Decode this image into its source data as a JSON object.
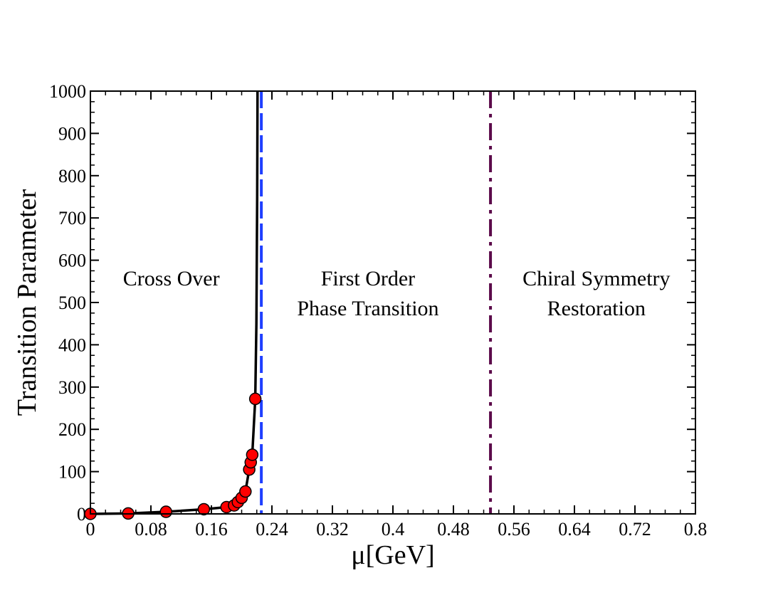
{
  "chart_data": {
    "type": "line",
    "xlabel": "μ[GeV]",
    "ylabel": "Transition Parameter",
    "xlim": [
      0,
      0.8
    ],
    "ylim": [
      0,
      1000
    ],
    "xticks": [
      "0",
      "0.08",
      "0.16",
      "0.24",
      "0.32",
      "0.4",
      "0.48",
      "0.56",
      "0.64",
      "0.72",
      "0.8"
    ],
    "yticks": [
      "0",
      "100",
      "200",
      "300",
      "400",
      "500",
      "600",
      "700",
      "800",
      "900",
      "1000"
    ],
    "series": [
      {
        "name": "Transition Parameter",
        "color": "#000000",
        "marker_color": "#ff0000",
        "x": [
          0,
          0.05,
          0.1,
          0.15,
          0.18,
          0.19,
          0.195,
          0.2,
          0.205,
          0.21,
          0.212,
          0.214,
          0.218
        ],
        "y": [
          0,
          1,
          5,
          11,
          16,
          20,
          28,
          38,
          53,
          105,
          122,
          140,
          272
        ],
        "curve_x": [
          0,
          0.05,
          0.1,
          0.15,
          0.18,
          0.19,
          0.195,
          0.2,
          0.205,
          0.21,
          0.212,
          0.214,
          0.218,
          0.2195,
          0.2205,
          0.221
        ],
        "curve_y": [
          0,
          1,
          5,
          11,
          16,
          20,
          28,
          38,
          53,
          105,
          122,
          140,
          272,
          450,
          750,
          1000
        ]
      }
    ],
    "vlines": [
      {
        "name": "first-order-boundary",
        "x": 0.226,
        "style": "dashed",
        "color": "#1f3fff"
      },
      {
        "name": "chiral-restoration-boundary",
        "x": 0.529,
        "style": "dashdot",
        "color": "#5c0a4a"
      }
    ],
    "annotations": [
      {
        "lines": [
          "Cross Over"
        ],
        "x": 0.107,
        "y": 540
      },
      {
        "lines": [
          "First Order",
          "Phase Transition"
        ],
        "x": 0.367,
        "y": 540
      },
      {
        "lines": [
          "Chiral Symmetry",
          "Restoration"
        ],
        "x": 0.669,
        "y": 540
      }
    ]
  }
}
